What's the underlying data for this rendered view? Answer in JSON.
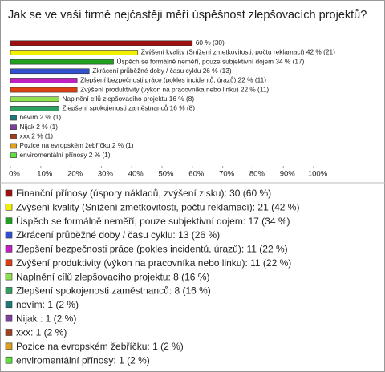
{
  "chart_data": {
    "type": "bar",
    "orientation": "horizontal",
    "title": "Jak se ve vaší firmě nejčastěji měří úspěšnost zlepšovacích projektů?",
    "categories": [
      "Finanční přínosy (úspory nákladů, zvýšení zisku): 30 (60 %)",
      "Zvýšení kvality (Snížení zmetkovitosti, počtu reklamací): 21 (42 %)",
      "Úspěch se formálně neměří, pouze subjektivní dojem: 17 (34 %)",
      "Zkrácení průběžné doby / času cyklu: 13 (26 %)",
      "Zlepšení bezpečnosti práce (pokles incidentů, úrazů): 11 (22 %)",
      "Zvýšení produktivity (výkon na pracovníka nebo linku): 11 (22 %)",
      "Naplnění cílů zlepšovacího projektu: 8 (16 %)",
      "Zlepšení spokojenosti zaměstnanců: 8 (16 %)",
      "nevím: 1 (2 %)",
      "Nijak : 1 (2 %)",
      "xxx: 1 (2 %)",
      "Pozice na evropském žebříčku: 1 (2 %)",
      "enviromentální přínosy: 1 (2 %)"
    ],
    "values": [
      60,
      42,
      34,
      26,
      22,
      22,
      16,
      16,
      2,
      2,
      2,
      2,
      2
    ],
    "value_labels": [
      "60 % (30)",
      "Zvýšení kvality (Snížení zmetkovitosti, počtu reklamací) 42 % (21)",
      "Úspěch se formálně neměří, pouze subjektivní dojem 34 % (17)",
      "Zkrácení průběžné doby / času cyklu 26 % (13)",
      "Zlepšení bezpečnosti práce (pokles incidentů, úrazů) 22 % (11)",
      "Zvýšení produktivity (výkon na pracovníka nebo linku) 22 % (11)",
      "Naplnění cílů zlepšovacího projektu 16 % (8)",
      "Zlepšení spokojenosti zaměstnanců 16 % (8)",
      "nevím 2 % (1)",
      "Nijak 2 % (1)",
      "xxx 2 % (1)",
      "Pozice na evropském žebříčku 2 % (1)",
      "enviromentální přínosy 2 % (1)"
    ],
    "colors": [
      "#a01010",
      "#f0f000",
      "#20a020",
      "#3050d0",
      "#c020c0",
      "#e04010",
      "#90e050",
      "#30a060",
      "#207878",
      "#8040a0",
      "#a04020",
      "#e0a020",
      "#60e040"
    ],
    "xlim": [
      0,
      100
    ],
    "xticks": [
      {
        "value": 0,
        "label": "0%"
      },
      {
        "value": 10,
        "label": "10%"
      },
      {
        "value": 20,
        "label": "20%"
      },
      {
        "value": 30,
        "label": "30%"
      },
      {
        "value": 40,
        "label": "40%"
      },
      {
        "value": 50,
        "label": "50%"
      },
      {
        "value": 60,
        "label": "60%"
      },
      {
        "value": 70,
        "label": "70%"
      },
      {
        "value": 80,
        "label": "80%"
      },
      {
        "value": 90,
        "label": "90%"
      },
      {
        "value": 100,
        "label": "100%"
      }
    ]
  }
}
